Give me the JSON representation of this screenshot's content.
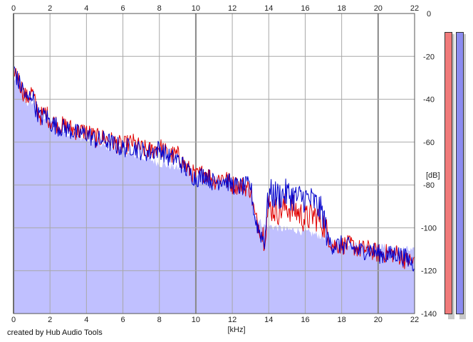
{
  "chart_data": {
    "type": "area",
    "xlabel": "[kHz]",
    "ylabel": "[dB]",
    "xlim": [
      0,
      22
    ],
    "ylim": [
      -140,
      0
    ],
    "x_ticks": [
      0,
      2,
      4,
      6,
      8,
      10,
      12,
      14,
      16,
      18,
      20,
      22
    ],
    "y_ticks": [
      0,
      -20,
      -40,
      -60,
      -80,
      -100,
      -120,
      -140
    ],
    "grid": true,
    "colors": {
      "fill": "#c0c0ff",
      "red_line": "#e00000",
      "blue_line": "#0000cc",
      "grid": "#a8a8a8",
      "grid_major": "#888888",
      "meter_left": "#f07a7a",
      "meter_right": "#8c8cf0"
    },
    "x": [
      0,
      0.25,
      0.5,
      0.75,
      1,
      1.25,
      1.5,
      1.75,
      2,
      2.5,
      3,
      3.5,
      4,
      4.5,
      5,
      5.5,
      6,
      6.5,
      7,
      7.5,
      8,
      8.5,
      9,
      9.5,
      10,
      10.5,
      11,
      11.5,
      12,
      12.5,
      13,
      13.25,
      13.5,
      13.75,
      14,
      14.5,
      15,
      15.5,
      16,
      16.5,
      17,
      17.25,
      17.5,
      18,
      18.5,
      19,
      19.5,
      20,
      20.5,
      21,
      21.5,
      22
    ],
    "series": [
      {
        "values": [
          -25,
          -30,
          -36,
          -40,
          -36,
          -44,
          -48,
          -46,
          -50,
          -52,
          -53,
          -55,
          -55,
          -58,
          -58,
          -60,
          -62,
          -60,
          -63,
          -64,
          -62,
          -66,
          -66,
          -72,
          -76,
          -74,
          -78,
          -76,
          -80,
          -80,
          -82,
          -95,
          -100,
          -104,
          -90,
          -92,
          -90,
          -92,
          -96,
          -94,
          -98,
          -104,
          -108,
          -108,
          -108,
          -110,
          -110,
          -112,
          -112,
          -112,
          -115,
          -116
        ]
      },
      {
        "values": [
          -24,
          -32,
          -35,
          -41,
          -37,
          -45,
          -49,
          -47,
          -51,
          -53,
          -54,
          -56,
          -56,
          -59,
          -59,
          -61,
          -63,
          -62,
          -64,
          -65,
          -63,
          -67,
          -68,
          -73,
          -77,
          -75,
          -79,
          -77,
          -80,
          -81,
          -80,
          -96,
          -102,
          -106,
          -84,
          -85,
          -84,
          -86,
          -86,
          -88,
          -94,
          -106,
          -108,
          -108,
          -109,
          -111,
          -110,
          -112,
          -113,
          -112,
          -114,
          -117
        ]
      }
    ],
    "fill_values": [
      -30,
      -33,
      -38,
      -42,
      -41,
      -45,
      -48,
      -49,
      -51,
      -54,
      -56,
      -57,
      -59,
      -60,
      -62,
      -63,
      -65,
      -66,
      -67,
      -68,
      -70,
      -71,
      -72,
      -74,
      -75,
      -76,
      -77,
      -78,
      -79,
      -80,
      -82,
      -94,
      -97,
      -99,
      -99,
      -100,
      -101,
      -101,
      -102,
      -103,
      -104,
      -105,
      -106,
      -107,
      -107,
      -108,
      -108,
      -109,
      -109,
      -110,
      -110,
      -111
    ]
  },
  "meters": {
    "left_level": 1.0,
    "right_level": 1.0
  },
  "credit": "created by Hub Audio Tools"
}
